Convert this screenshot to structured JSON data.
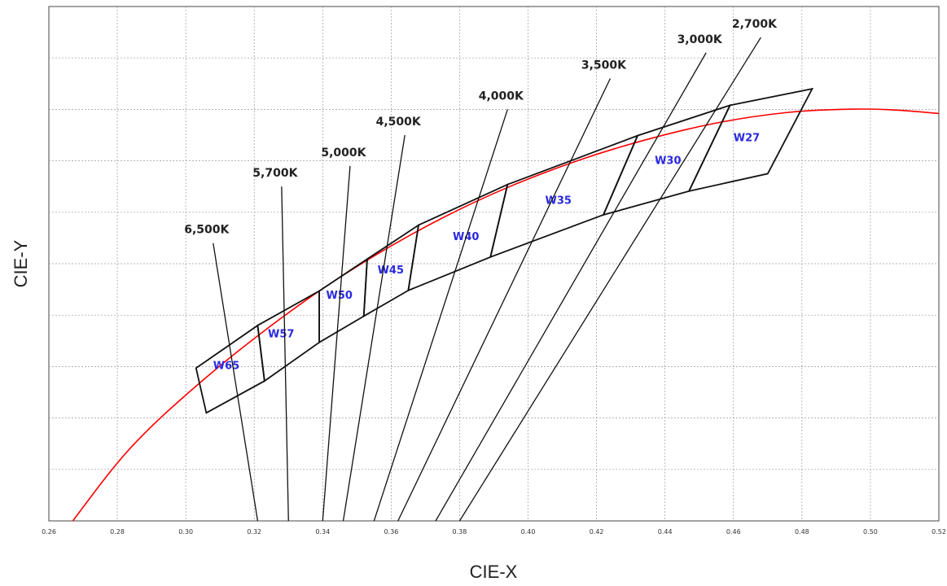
{
  "chart_data": {
    "type": "line",
    "xlabel": "CIE-X",
    "ylabel": "CIE-Y",
    "xlim": [
      0.26,
      0.52
    ],
    "ylim": [
      0.0,
      1.0
    ],
    "x_ticks": [
      "0.26",
      "0.28",
      "0.30",
      "0.32",
      "0.34",
      "0.36",
      "0.38",
      "0.40",
      "0.42",
      "0.44",
      "0.46",
      "0.48",
      "0.50",
      "0.52"
    ],
    "grid": true,
    "colors": {
      "locus": "#ff0000",
      "lines": "#111111",
      "bin_labels": "#2a2ae0",
      "grid": "#9a9a9a"
    },
    "planckian_locus": {
      "name": "",
      "points": [
        [
          0.267,
          0.0
        ],
        [
          0.28,
          0.115
        ],
        [
          0.29,
          0.185
        ],
        [
          0.3,
          0.245
        ],
        [
          0.31,
          0.302
        ],
        [
          0.32,
          0.355
        ],
        [
          0.33,
          0.405
        ],
        [
          0.34,
          0.452
        ],
        [
          0.35,
          0.495
        ],
        [
          0.36,
          0.535
        ],
        [
          0.37,
          0.572
        ],
        [
          0.38,
          0.606
        ],
        [
          0.39,
          0.637
        ],
        [
          0.4,
          0.665
        ],
        [
          0.41,
          0.69
        ],
        [
          0.42,
          0.713
        ],
        [
          0.43,
          0.733
        ],
        [
          0.44,
          0.751
        ],
        [
          0.45,
          0.767
        ],
        [
          0.46,
          0.78
        ],
        [
          0.47,
          0.79
        ],
        [
          0.48,
          0.797
        ],
        [
          0.49,
          0.8
        ],
        [
          0.5,
          0.801
        ],
        [
          0.51,
          0.798
        ],
        [
          0.52,
          0.792
        ]
      ]
    },
    "cct_lines": [
      {
        "label": "6,500K",
        "from": [
          0.321,
          0.0
        ],
        "to": [
          0.308,
          0.54
        ]
      },
      {
        "label": "5,700K",
        "from": [
          0.33,
          0.0
        ],
        "to": [
          0.328,
          0.65
        ]
      },
      {
        "label": "5,000K",
        "from": [
          0.34,
          0.0
        ],
        "to": [
          0.348,
          0.69
        ]
      },
      {
        "label": "4,500K",
        "from": [
          0.346,
          0.0
        ],
        "to": [
          0.364,
          0.75
        ]
      },
      {
        "label": "4,000K",
        "from": [
          0.355,
          0.0
        ],
        "to": [
          0.394,
          0.8
        ]
      },
      {
        "label": "3,500K",
        "from": [
          0.362,
          0.0
        ],
        "to": [
          0.424,
          0.86
        ]
      },
      {
        "label": "3,000K",
        "from": [
          0.373,
          0.0
        ],
        "to": [
          0.452,
          0.91
        ]
      },
      {
        "label": "2,700K",
        "from": [
          0.38,
          0.0
        ],
        "to": [
          0.468,
          0.94
        ]
      }
    ],
    "bins": [
      {
        "label": "W65",
        "corners": [
          [
            0.303,
            0.297
          ],
          [
            0.321,
            0.38
          ],
          [
            0.323,
            0.272
          ],
          [
            0.306,
            0.21
          ]
        ],
        "label_at": [
          0.308,
          0.295
        ]
      },
      {
        "label": "W57",
        "corners": [
          [
            0.321,
            0.38
          ],
          [
            0.339,
            0.447
          ],
          [
            0.339,
            0.347
          ],
          [
            0.323,
            0.272
          ]
        ],
        "label_at": [
          0.324,
          0.357
        ]
      },
      {
        "label": "W50",
        "corners": [
          [
            0.339,
            0.447
          ],
          [
            0.353,
            0.509
          ],
          [
            0.352,
            0.398
          ],
          [
            0.339,
            0.347
          ]
        ],
        "label_at": [
          0.341,
          0.432
        ]
      },
      {
        "label": "W45",
        "corners": [
          [
            0.353,
            0.509
          ],
          [
            0.368,
            0.575
          ],
          [
            0.365,
            0.448
          ],
          [
            0.352,
            0.398
          ]
        ],
        "label_at": [
          0.356,
          0.481
        ]
      },
      {
        "label": "W40",
        "corners": [
          [
            0.368,
            0.575
          ],
          [
            0.394,
            0.654
          ],
          [
            0.389,
            0.513
          ],
          [
            0.365,
            0.448
          ]
        ],
        "label_at": [
          0.378,
          0.546
        ]
      },
      {
        "label": "W35",
        "corners": [
          [
            0.394,
            0.654
          ],
          [
            0.432,
            0.749
          ],
          [
            0.422,
            0.595
          ],
          [
            0.389,
            0.513
          ]
        ],
        "label_at": [
          0.405,
          0.616
        ]
      },
      {
        "label": "W30",
        "corners": [
          [
            0.432,
            0.749
          ],
          [
            0.459,
            0.808
          ],
          [
            0.447,
            0.641
          ],
          [
            0.422,
            0.595
          ]
        ],
        "label_at": [
          0.437,
          0.694
        ]
      },
      {
        "label": "W27",
        "corners": [
          [
            0.459,
            0.808
          ],
          [
            0.483,
            0.84
          ],
          [
            0.47,
            0.675
          ],
          [
            0.447,
            0.641
          ]
        ],
        "label_at": [
          0.46,
          0.738
        ]
      }
    ]
  }
}
